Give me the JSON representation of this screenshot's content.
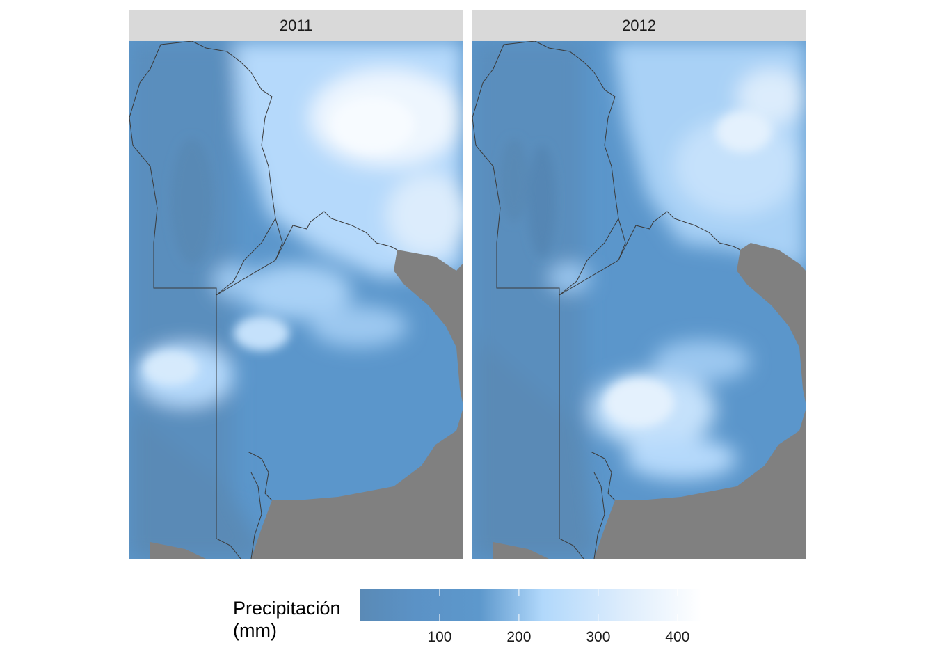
{
  "panels": [
    {
      "year": "2011"
    },
    {
      "year": "2012"
    }
  ],
  "legend": {
    "title_line1": "Precipitación",
    "title_line2": "(mm)",
    "scale_min": 0,
    "scale_max": 430,
    "breaks": [
      100,
      200,
      300,
      400
    ],
    "break_labels": [
      "100",
      "200",
      "300",
      "400"
    ],
    "color_stops": [
      {
        "value": 0,
        "color": "#5a8ab6"
      },
      {
        "value": 70,
        "color": "#5b92c6"
      },
      {
        "value": 150,
        "color": "#5d98cc"
      },
      {
        "value": 230,
        "color": "#b1d8fb"
      },
      {
        "value": 330,
        "color": "#dcecfc"
      },
      {
        "value": 430,
        "color": "#ffffff"
      }
    ]
  },
  "colors": {
    "strip_background": "#d9d9d9",
    "ocean": "#808080",
    "dry": "#5a8ab6",
    "medium": "#5b97cc",
    "wet": "#b7dbfb",
    "very_wet": "#f1f7fd",
    "boundary": "#3a3a3a"
  }
}
